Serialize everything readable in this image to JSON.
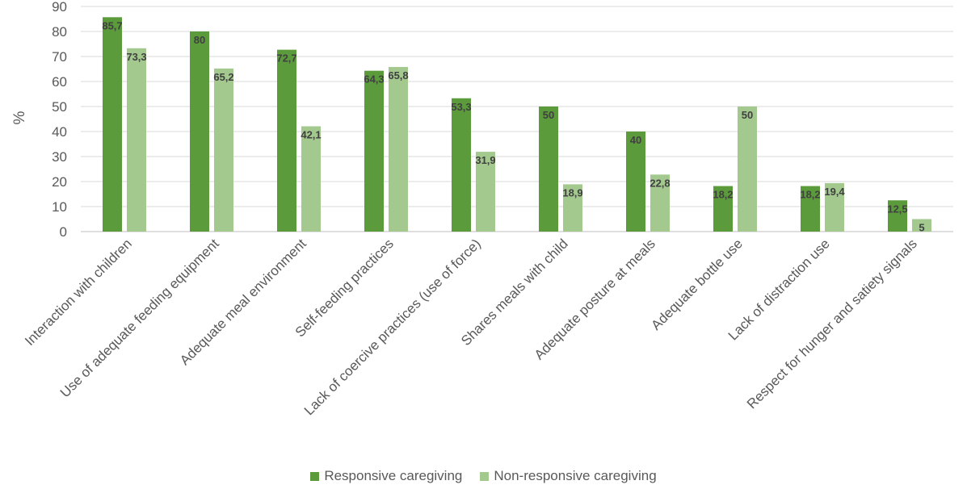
{
  "chart_data": {
    "type": "bar",
    "categories": [
      "Interaction with children",
      "Use of adequate feeding equipment",
      "Adequate meal environment",
      "Self-feeding practices",
      "Lack of coercive practices (use of force)",
      "Shares meals with child",
      "Adequate posture at meals",
      "Adequate bottle use",
      "Lack of distraction use",
      "Respect for hunger and satiety signals"
    ],
    "series": [
      {
        "name": "Responsive caregiving",
        "color": "#5b9b3c",
        "values": [
          85.7,
          80,
          72.7,
          64.3,
          53.3,
          50,
          40,
          18.2,
          18.2,
          12.5
        ],
        "labels": [
          "85,7",
          "80",
          "72,7",
          "64,3",
          "53,3",
          "50",
          "40",
          "18,2",
          "18,2",
          "12,5"
        ]
      },
      {
        "name": "Non-responsive caregiving",
        "color": "#a3c98f",
        "values": [
          73.3,
          65.2,
          42.1,
          65.8,
          31.9,
          18.9,
          22.8,
          50,
          19.4,
          5
        ],
        "labels": [
          "73,3",
          "65,2",
          "42,1",
          "65,8",
          "31,9",
          "18,9",
          "22,8",
          "50",
          "19,4",
          "5"
        ]
      }
    ],
    "ylabel": "%",
    "xlabel": "",
    "ylim": [
      0,
      90
    ],
    "yticks": [
      0,
      10,
      20,
      30,
      40,
      50,
      60,
      70,
      80,
      90
    ],
    "grid": true,
    "legend_position": "bottom"
  }
}
